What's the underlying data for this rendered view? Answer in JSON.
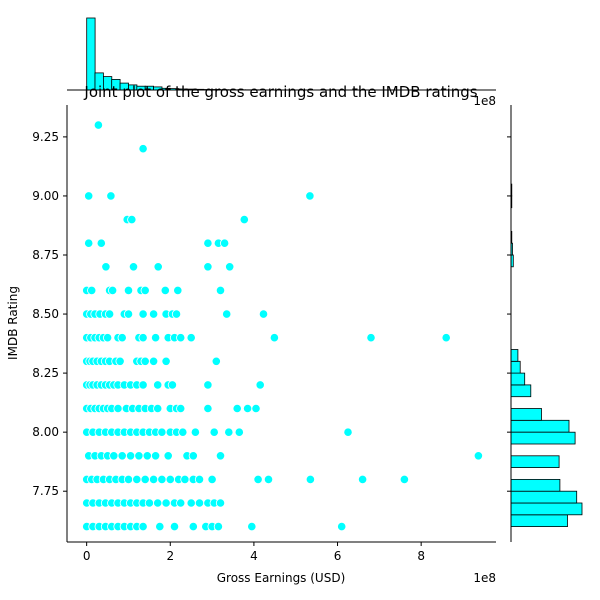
{
  "chart_data": {
    "type": "scatter",
    "title": "Joint plot of the gross earnings and the IMDB ratings",
    "xlabel": "Gross Earnings (USD)",
    "ylabel": "IMDB Rating",
    "x_offset_label": "1e8",
    "y_offset_label": "1e8",
    "xlim": [
      -0.47,
      9.79
    ],
    "ylim": [
      7.535,
      9.385
    ],
    "xticks": [
      0,
      2,
      4,
      6,
      8
    ],
    "xtick_labels": [
      "0",
      "2",
      "4",
      "6",
      "8"
    ],
    "yticks": [
      7.75,
      8.0,
      8.25,
      8.5,
      8.75,
      9.0,
      9.25
    ],
    "ytick_labels": [
      "7.75",
      "8.00",
      "8.25",
      "8.50",
      "8.75",
      "9.00",
      "9.25"
    ],
    "grid": false,
    "point_color": "#00ffff",
    "point_edge_color": "#ffffff",
    "hist_color": "#00ffff",
    "hist_edge_color": "#000000",
    "points": [
      [
        0.28,
        9.3
      ],
      [
        1.35,
        9.2
      ],
      [
        0.05,
        9.0
      ],
      [
        0.58,
        9.0
      ],
      [
        5.34,
        9.0
      ],
      [
        0.97,
        8.9
      ],
      [
        1.08,
        8.9
      ],
      [
        3.77,
        8.9
      ],
      [
        0.05,
        8.8
      ],
      [
        0.35,
        8.8
      ],
      [
        2.9,
        8.8
      ],
      [
        3.15,
        8.8
      ],
      [
        3.3,
        8.8
      ],
      [
        0.46,
        8.7
      ],
      [
        1.12,
        8.7
      ],
      [
        1.71,
        8.7
      ],
      [
        2.9,
        8.7
      ],
      [
        3.42,
        8.7
      ],
      [
        0.0,
        8.6
      ],
      [
        0.12,
        8.6
      ],
      [
        0.55,
        8.6
      ],
      [
        0.62,
        8.6
      ],
      [
        1.0,
        8.6
      ],
      [
        1.3,
        8.6
      ],
      [
        1.4,
        8.6
      ],
      [
        1.88,
        8.6
      ],
      [
        2.18,
        8.6
      ],
      [
        3.2,
        8.6
      ],
      [
        0.0,
        8.5
      ],
      [
        0.1,
        8.5
      ],
      [
        0.2,
        8.5
      ],
      [
        0.32,
        8.5
      ],
      [
        0.45,
        8.5
      ],
      [
        0.55,
        8.5
      ],
      [
        0.9,
        8.5
      ],
      [
        1.0,
        8.5
      ],
      [
        1.35,
        8.5
      ],
      [
        1.6,
        8.5
      ],
      [
        1.9,
        8.5
      ],
      [
        2.05,
        8.5
      ],
      [
        2.15,
        8.5
      ],
      [
        3.35,
        8.5
      ],
      [
        4.23,
        8.5
      ],
      [
        0.0,
        8.4
      ],
      [
        0.1,
        8.4
      ],
      [
        0.2,
        8.4
      ],
      [
        0.3,
        8.4
      ],
      [
        0.4,
        8.4
      ],
      [
        0.5,
        8.4
      ],
      [
        0.75,
        8.4
      ],
      [
        0.85,
        8.4
      ],
      [
        1.25,
        8.4
      ],
      [
        1.35,
        8.4
      ],
      [
        1.65,
        8.4
      ],
      [
        1.95,
        8.4
      ],
      [
        2.1,
        8.4
      ],
      [
        2.25,
        8.4
      ],
      [
        2.5,
        8.4
      ],
      [
        4.49,
        8.4
      ],
      [
        6.8,
        8.4
      ],
      [
        8.6,
        8.4
      ],
      [
        0.0,
        8.3
      ],
      [
        0.08,
        8.3
      ],
      [
        0.15,
        8.3
      ],
      [
        0.25,
        8.3
      ],
      [
        0.35,
        8.3
      ],
      [
        0.45,
        8.3
      ],
      [
        0.55,
        8.3
      ],
      [
        0.7,
        8.3
      ],
      [
        0.8,
        8.3
      ],
      [
        1.2,
        8.3
      ],
      [
        1.3,
        8.3
      ],
      [
        1.4,
        8.3
      ],
      [
        1.6,
        8.3
      ],
      [
        1.9,
        8.3
      ],
      [
        3.1,
        8.3
      ],
      [
        0.0,
        8.2
      ],
      [
        0.08,
        8.2
      ],
      [
        0.15,
        8.2
      ],
      [
        0.25,
        8.2
      ],
      [
        0.35,
        8.2
      ],
      [
        0.45,
        8.2
      ],
      [
        0.55,
        8.2
      ],
      [
        0.65,
        8.2
      ],
      [
        0.75,
        8.2
      ],
      [
        0.9,
        8.2
      ],
      [
        1.05,
        8.2
      ],
      [
        1.2,
        8.2
      ],
      [
        1.35,
        8.2
      ],
      [
        1.7,
        8.2
      ],
      [
        1.95,
        8.2
      ],
      [
        2.05,
        8.2
      ],
      [
        2.9,
        8.2
      ],
      [
        4.15,
        8.2
      ],
      [
        0.0,
        8.1
      ],
      [
        0.1,
        8.1
      ],
      [
        0.2,
        8.1
      ],
      [
        0.3,
        8.1
      ],
      [
        0.4,
        8.1
      ],
      [
        0.5,
        8.1
      ],
      [
        0.6,
        8.1
      ],
      [
        0.75,
        8.1
      ],
      [
        0.95,
        8.1
      ],
      [
        1.1,
        8.1
      ],
      [
        1.25,
        8.1
      ],
      [
        1.4,
        8.1
      ],
      [
        1.55,
        8.1
      ],
      [
        1.7,
        8.1
      ],
      [
        2.0,
        8.1
      ],
      [
        2.15,
        8.1
      ],
      [
        2.25,
        8.1
      ],
      [
        2.9,
        8.1
      ],
      [
        3.6,
        8.1
      ],
      [
        3.85,
        8.1
      ],
      [
        4.05,
        8.1
      ],
      [
        0.0,
        8.0
      ],
      [
        0.15,
        8.0
      ],
      [
        0.3,
        8.0
      ],
      [
        0.45,
        8.0
      ],
      [
        0.6,
        8.0
      ],
      [
        0.75,
        8.0
      ],
      [
        0.9,
        8.0
      ],
      [
        1.05,
        8.0
      ],
      [
        1.2,
        8.0
      ],
      [
        1.35,
        8.0
      ],
      [
        1.5,
        8.0
      ],
      [
        1.65,
        8.0
      ],
      [
        1.8,
        8.0
      ],
      [
        2.0,
        8.0
      ],
      [
        2.15,
        8.0
      ],
      [
        2.3,
        8.0
      ],
      [
        2.6,
        8.0
      ],
      [
        3.05,
        8.0
      ],
      [
        3.4,
        8.0
      ],
      [
        3.65,
        8.0
      ],
      [
        6.25,
        8.0
      ],
      [
        0.05,
        7.9
      ],
      [
        0.2,
        7.9
      ],
      [
        0.35,
        7.9
      ],
      [
        0.5,
        7.9
      ],
      [
        0.65,
        7.9
      ],
      [
        0.85,
        7.9
      ],
      [
        1.05,
        7.9
      ],
      [
        1.25,
        7.9
      ],
      [
        1.45,
        7.9
      ],
      [
        1.65,
        7.9
      ],
      [
        1.95,
        7.9
      ],
      [
        2.4,
        7.9
      ],
      [
        2.55,
        7.9
      ],
      [
        3.2,
        7.9
      ],
      [
        9.37,
        7.9
      ],
      [
        0.0,
        7.8
      ],
      [
        0.12,
        7.8
      ],
      [
        0.25,
        7.8
      ],
      [
        0.4,
        7.8
      ],
      [
        0.55,
        7.8
      ],
      [
        0.7,
        7.8
      ],
      [
        0.85,
        7.8
      ],
      [
        1.0,
        7.8
      ],
      [
        1.2,
        7.8
      ],
      [
        1.4,
        7.8
      ],
      [
        1.6,
        7.8
      ],
      [
        1.8,
        7.8
      ],
      [
        2.0,
        7.8
      ],
      [
        2.2,
        7.8
      ],
      [
        2.35,
        7.8
      ],
      [
        2.55,
        7.8
      ],
      [
        2.7,
        7.8
      ],
      [
        3.0,
        7.8
      ],
      [
        4.1,
        7.8
      ],
      [
        4.35,
        7.8
      ],
      [
        5.35,
        7.8
      ],
      [
        6.6,
        7.8
      ],
      [
        7.6,
        7.8
      ],
      [
        0.0,
        7.7
      ],
      [
        0.15,
        7.7
      ],
      [
        0.3,
        7.7
      ],
      [
        0.45,
        7.7
      ],
      [
        0.6,
        7.7
      ],
      [
        0.75,
        7.7
      ],
      [
        0.9,
        7.7
      ],
      [
        1.05,
        7.7
      ],
      [
        1.2,
        7.7
      ],
      [
        1.35,
        7.7
      ],
      [
        1.5,
        7.7
      ],
      [
        1.7,
        7.7
      ],
      [
        1.9,
        7.7
      ],
      [
        2.1,
        7.7
      ],
      [
        2.25,
        7.7
      ],
      [
        2.5,
        7.7
      ],
      [
        2.7,
        7.7
      ],
      [
        2.9,
        7.7
      ],
      [
        3.05,
        7.7
      ],
      [
        3.2,
        7.7
      ],
      [
        0.0,
        7.6
      ],
      [
        0.15,
        7.6
      ],
      [
        0.3,
        7.6
      ],
      [
        0.45,
        7.6
      ],
      [
        0.6,
        7.6
      ],
      [
        0.75,
        7.6
      ],
      [
        0.9,
        7.6
      ],
      [
        1.05,
        7.6
      ],
      [
        1.2,
        7.6
      ],
      [
        1.35,
        7.6
      ],
      [
        1.75,
        7.6
      ],
      [
        2.1,
        7.6
      ],
      [
        2.55,
        7.6
      ],
      [
        2.85,
        7.6
      ],
      [
        3.0,
        7.6
      ],
      [
        3.15,
        7.6
      ],
      [
        3.95,
        7.6
      ],
      [
        6.1,
        7.6
      ]
    ],
    "x_hist": {
      "bin_width": 0.2,
      "bin_start": 0.0,
      "counts": [
        420,
        100,
        78,
        62,
        40,
        30,
        22,
        22,
        18,
        10,
        8,
        6,
        5,
        4,
        3,
        3,
        2,
        1,
        1,
        1,
        1
      ]
    },
    "y_hist": {
      "bins": [
        {
          "lo": 7.6,
          "hi": 7.65,
          "count": 74
        },
        {
          "lo": 7.65,
          "hi": 7.7,
          "count": 93
        },
        {
          "lo": 7.7,
          "hi": 7.75,
          "count": 86
        },
        {
          "lo": 7.75,
          "hi": 7.8,
          "count": 64
        },
        {
          "lo": 7.8,
          "hi": 7.85,
          "count": 0
        },
        {
          "lo": 7.85,
          "hi": 7.9,
          "count": 63
        },
        {
          "lo": 7.9,
          "hi": 7.95,
          "count": 0
        },
        {
          "lo": 7.95,
          "hi": 8.0,
          "count": 84
        },
        {
          "lo": 8.0,
          "hi": 8.05,
          "count": 76
        },
        {
          "lo": 8.05,
          "hi": 8.1,
          "count": 40
        },
        {
          "lo": 8.1,
          "hi": 8.15,
          "count": 0
        },
        {
          "lo": 8.15,
          "hi": 8.2,
          "count": 26
        },
        {
          "lo": 8.2,
          "hi": 8.25,
          "count": 18
        },
        {
          "lo": 8.25,
          "hi": 8.3,
          "count": 12
        },
        {
          "lo": 8.3,
          "hi": 8.35,
          "count": 9
        },
        {
          "lo": 8.35,
          "hi": 8.4,
          "count": 0
        },
        {
          "lo": 8.4,
          "hi": 8.45,
          "count": 0
        },
        {
          "lo": 8.45,
          "hi": 8.5,
          "count": 0
        },
        {
          "lo": 8.5,
          "hi": 8.55,
          "count": 0
        },
        {
          "lo": 8.55,
          "hi": 8.6,
          "count": 0
        },
        {
          "lo": 8.6,
          "hi": 8.65,
          "count": 0
        },
        {
          "lo": 8.65,
          "hi": 8.7,
          "count": 0
        },
        {
          "lo": 8.7,
          "hi": 8.75,
          "count": 3
        },
        {
          "lo": 8.75,
          "hi": 8.8,
          "count": 2
        },
        {
          "lo": 8.8,
          "hi": 8.85,
          "count": 1
        },
        {
          "lo": 8.85,
          "hi": 8.9,
          "count": 0
        },
        {
          "lo": 8.9,
          "hi": 8.95,
          "count": 0
        },
        {
          "lo": 8.95,
          "hi": 9.0,
          "count": 1
        },
        {
          "lo": 9.0,
          "hi": 9.05,
          "count": 1
        }
      ]
    }
  }
}
